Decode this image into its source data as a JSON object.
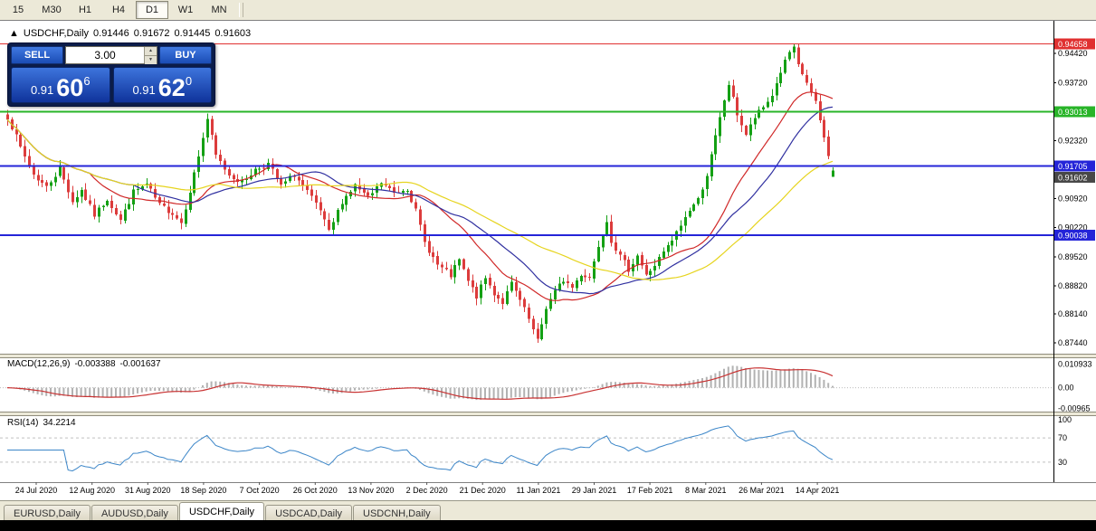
{
  "toolbar": {
    "timeframes": [
      {
        "label": "15",
        "active": false
      },
      {
        "label": "M30",
        "active": false
      },
      {
        "label": "H1",
        "active": false
      },
      {
        "label": "H4",
        "active": false
      },
      {
        "label": "D1",
        "active": true
      },
      {
        "label": "W1",
        "active": false
      },
      {
        "label": "MN",
        "active": false
      }
    ]
  },
  "chart": {
    "collapse_arrow": "▲",
    "symbol_title": "USDCHF,Daily",
    "open": "0.91446",
    "high": "0.91672",
    "low": "0.91445",
    "close": "0.91603"
  },
  "trade_panel": {
    "sell_label": "SELL",
    "buy_label": "BUY",
    "volume": "3.00",
    "spinner_up": "▲",
    "spinner_down": "▼",
    "sell_price": {
      "prefix": "0.91",
      "big": "60",
      "sup": "6"
    },
    "buy_price": {
      "prefix": "0.91",
      "big": "62",
      "sup": "0"
    }
  },
  "tabs": [
    {
      "label": "EURUSD,Daily",
      "active": false
    },
    {
      "label": "AUDUSD,Daily",
      "active": false
    },
    {
      "label": "USDCHF,Daily",
      "active": true
    },
    {
      "label": "USDCAD,Daily",
      "active": false
    },
    {
      "label": "USDCNH,Daily",
      "active": false
    }
  ],
  "chart_data": {
    "type": "candlestick",
    "symbol": "USDCHF",
    "timeframe": "Daily",
    "ohlc": [
      0.91446,
      0.91672,
      0.91445,
      0.91603
    ],
    "price_range": {
      "min": 0.8718,
      "max": 0.9508
    },
    "price_ticks": [
      "0.94420",
      "0.93720",
      "0.92320",
      "0.90920",
      "0.90220",
      "0.89520",
      "0.88820",
      "0.88140",
      "0.87440"
    ],
    "h_lines": [
      {
        "label": "0.94658",
        "price": 0.94658,
        "color": "#e03030",
        "width": 1
      },
      {
        "label": "0.93013",
        "price": 0.93013,
        "color": "#28b428",
        "width": 2
      },
      {
        "label": "0.91705",
        "price": 0.91705,
        "color": "#2424d8",
        "width": 2
      },
      {
        "label": "0.90038",
        "price": 0.90038,
        "color": "#2424d8",
        "width": 2
      }
    ],
    "current_price": {
      "label": "0.91602",
      "price": 0.91602,
      "color": "#484848"
    },
    "date_labels": [
      "24 Jul 2020",
      "12 Aug 2020",
      "31 Aug 2020",
      "18 Sep 2020",
      "7 Oct 2020",
      "26 Oct 2020",
      "13 Nov 2020",
      "2 Dec 2020",
      "21 Dec 2020",
      "11 Jan 2021",
      "29 Jan 2021",
      "17 Feb 2021",
      "8 Mar 2021",
      "26 Mar 2021",
      "14 Apr 2021"
    ],
    "candles": {
      "count": 191,
      "up_color": "#14a014",
      "down_color": "#dc3c3c",
      "seed": 7,
      "noise": 0.0014,
      "wick": 0.0015,
      "extremes": {
        "high": 0.94655,
        "low": 0.87445
      },
      "last_close": 0.91603,
      "close_anchors": [
        [
          0,
          0.929
        ],
        [
          3,
          0.9215
        ],
        [
          6,
          0.915
        ],
        [
          9,
          0.912
        ],
        [
          12,
          0.9165
        ],
        [
          15,
          0.9085
        ],
        [
          17,
          0.9112
        ],
        [
          20,
          0.9052
        ],
        [
          23,
          0.9092
        ],
        [
          26,
          0.904
        ],
        [
          29,
          0.9108
        ],
        [
          32,
          0.9126
        ],
        [
          35,
          0.9076
        ],
        [
          38,
          0.9058
        ],
        [
          40,
          0.9034
        ],
        [
          43,
          0.9152
        ],
        [
          45,
          0.924
        ],
        [
          46,
          0.9285
        ],
        [
          48,
          0.9195
        ],
        [
          51,
          0.915
        ],
        [
          54,
          0.9132
        ],
        [
          57,
          0.9162
        ],
        [
          60,
          0.9176
        ],
        [
          63,
          0.9122
        ],
        [
          66,
          0.915
        ],
        [
          69,
          0.9108
        ],
        [
          72,
          0.9062
        ],
        [
          74,
          0.901
        ],
        [
          77,
          0.9086
        ],
        [
          80,
          0.9124
        ],
        [
          83,
          0.9092
        ],
        [
          86,
          0.913
        ],
        [
          89,
          0.9106
        ],
        [
          92,
          0.9118
        ],
        [
          94,
          0.9062
        ],
        [
          96,
          0.8986
        ],
        [
          99,
          0.8932
        ],
        [
          102,
          0.8906
        ],
        [
          104,
          0.8944
        ],
        [
          106,
          0.8892
        ],
        [
          108,
          0.8856
        ],
        [
          110,
          0.89
        ],
        [
          112,
          0.8864
        ],
        [
          114,
          0.8842
        ],
        [
          116,
          0.8886
        ],
        [
          118,
          0.8846
        ],
        [
          120,
          0.88
        ],
        [
          122,
          0.8748
        ],
        [
          124,
          0.883
        ],
        [
          126,
          0.8868
        ],
        [
          128,
          0.8896
        ],
        [
          130,
          0.8878
        ],
        [
          132,
          0.891
        ],
        [
          134,
          0.8902
        ],
        [
          136,
          0.898
        ],
        [
          138,
          0.904
        ],
        [
          139,
          0.8992
        ],
        [
          141,
          0.8952
        ],
        [
          143,
          0.8922
        ],
        [
          145,
          0.8956
        ],
        [
          147,
          0.8906
        ],
        [
          149,
          0.8932
        ],
        [
          151,
          0.8962
        ],
        [
          153,
          0.899
        ],
        [
          155,
          0.9028
        ],
        [
          157,
          0.9066
        ],
        [
          159,
          0.909
        ],
        [
          161,
          0.915
        ],
        [
          163,
          0.924
        ],
        [
          165,
          0.933
        ],
        [
          166,
          0.9368
        ],
        [
          168,
          0.9296
        ],
        [
          170,
          0.9246
        ],
        [
          172,
          0.9288
        ],
        [
          174,
          0.9312
        ],
        [
          176,
          0.9342
        ],
        [
          178,
          0.9398
        ],
        [
          180,
          0.9445
        ],
        [
          181,
          0.9452
        ],
        [
          182,
          0.9412
        ],
        [
          184,
          0.9372
        ],
        [
          186,
          0.9322
        ],
        [
          188,
          0.9238
        ],
        [
          190,
          0.916
        ]
      ]
    },
    "moving_averages": [
      {
        "period": 20,
        "color": "#d02828"
      },
      {
        "period": 30,
        "color": "#3030a0"
      },
      {
        "period": 50,
        "color": "#e6d41e"
      }
    ],
    "macd": {
      "title": "MACD(12,26,9)",
      "value_main": "-0.003388",
      "value_signal": "-0.001637",
      "axis_labels": [
        {
          "text": "0.010933",
          "value": 0.010933
        },
        {
          "text": "0.00",
          "value": 0
        },
        {
          "text": "-0.00965",
          "value": -0.00965
        }
      ],
      "range": [
        -0.0102,
        0.0115
      ],
      "hist_color": "#b2b2b2",
      "signal_color": "#c83232"
    },
    "rsi": {
      "title": "RSI(14)",
      "value": "34.2214",
      "color": "#3c86c8",
      "levels": [
        {
          "text": "100",
          "value": 100,
          "dashed": false
        },
        {
          "text": "70",
          "value": 70,
          "dashed": true
        },
        {
          "text": "30",
          "value": 30,
          "dashed": true
        }
      ]
    }
  }
}
